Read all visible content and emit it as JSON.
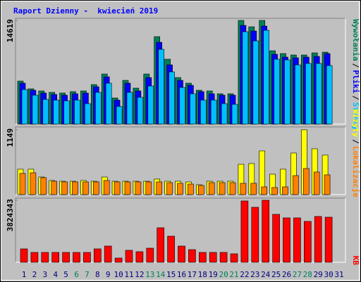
{
  "separator": "/",
  "chart_data": [
    {
      "type": "bar",
      "title": "Raport Dzienny -  kwiecień 2019",
      "ylim": [
        0,
        14619
      ],
      "yticks": [
        14619
      ],
      "series": [
        {
          "name": "Wywołania",
          "color": "#00805c",
          "values": [
            6066,
            4972,
            4674,
            4475,
            4376,
            4574,
            4674,
            5569,
            7061,
            3680,
            6166,
            5072,
            7061,
            12332,
            9149,
            6564,
            5768,
            4774,
            4674,
            4276,
            4276,
            14619,
            13724,
            14619,
            10343,
            9944,
            9746,
            9746,
            10045,
            10144,
            null
          ]
        },
        {
          "name": "Pliki",
          "color": "#0000ff",
          "values": [
            5768,
            4773,
            4376,
            4177,
            4077,
            4276,
            4376,
            5271,
            6663,
            3381,
            5768,
            4674,
            6564,
            11536,
            8354,
            6166,
            5470,
            4575,
            4276,
            4077,
            4077,
            13923,
            13127,
            13824,
            9846,
            9447,
            9348,
            9447,
            9547,
            9945,
            null
          ]
        },
        {
          "name": "Strony",
          "color": "#00c0ff",
          "values": [
            4873,
            4077,
            3481,
            3381,
            3282,
            3381,
            2884,
            4475,
            5768,
            2486,
            4475,
            3779,
            5370,
            10542,
            7359,
            5171,
            4276,
            3381,
            3381,
            2884,
            2784,
            13028,
            11735,
            13227,
            9149,
            9050,
            8354,
            8553,
            8553,
            8254,
            null
          ]
        }
      ]
    },
    {
      "type": "bar",
      "ylim": [
        0,
        1149
      ],
      "yticks": [
        1149
      ],
      "series": [
        {
          "name": "Wizyty",
          "color": "#ffff00",
          "values": [
            450,
            450,
            312,
            250,
            237,
            237,
            250,
            237,
            312,
            237,
            237,
            237,
            237,
            275,
            237,
            237,
            225,
            175,
            237,
            237,
            237,
            537,
            550,
            774,
            362,
            450,
            737,
            1149,
            812,
            700,
            null
          ]
        },
        {
          "name": "Lokalizacje",
          "color": "#ff8000",
          "values": [
            375,
            387,
            300,
            237,
            225,
            225,
            225,
            225,
            250,
            225,
            225,
            225,
            225,
            225,
            212,
            200,
            187,
            162,
            212,
            212,
            212,
            200,
            200,
            137,
            125,
            137,
            337,
            462,
            400,
            350,
            null
          ]
        }
      ]
    },
    {
      "type": "bar",
      "categories": [
        "1",
        "2",
        "3",
        "4",
        "5",
        "6",
        "7",
        "8",
        "9",
        "10",
        "11",
        "12",
        "13",
        "14",
        "15",
        "16",
        "17",
        "18",
        "19",
        "20",
        "21",
        "22",
        "23",
        "24",
        "25",
        "26",
        "27",
        "28",
        "29",
        "30",
        "31"
      ],
      "category_colors": [
        "#000080",
        "#000080",
        "#000080",
        "#000080",
        "#000080",
        "#00805c",
        "#00805c",
        "#000080",
        "#000080",
        "#000080",
        "#000080",
        "#000080",
        "#00805c",
        "#00805c",
        "#000080",
        "#000080",
        "#000080",
        "#000080",
        "#000080",
        "#00805c",
        "#00805c",
        "#000080",
        "#000080",
        "#000080",
        "#000080",
        "#000080",
        "#00805c",
        "#00805c",
        "#000080",
        "#000080",
        "#000080"
      ],
      "ylim": [
        0,
        3824343
      ],
      "yticks": [
        3824343
      ],
      "series": [
        {
          "name": "KB",
          "color": "#ff0000",
          "values": [
            826000,
            608000,
            608000,
            608000,
            608000,
            608000,
            608000,
            826000,
            1000000,
            261000,
            739000,
            652000,
            869000,
            2129000,
            1608000,
            1000000,
            782000,
            608000,
            608000,
            608000,
            521000,
            3781000,
            3390000,
            3824343,
            2955000,
            2738000,
            2738000,
            2521000,
            2825000,
            2781000,
            null
          ]
        }
      ]
    }
  ]
}
